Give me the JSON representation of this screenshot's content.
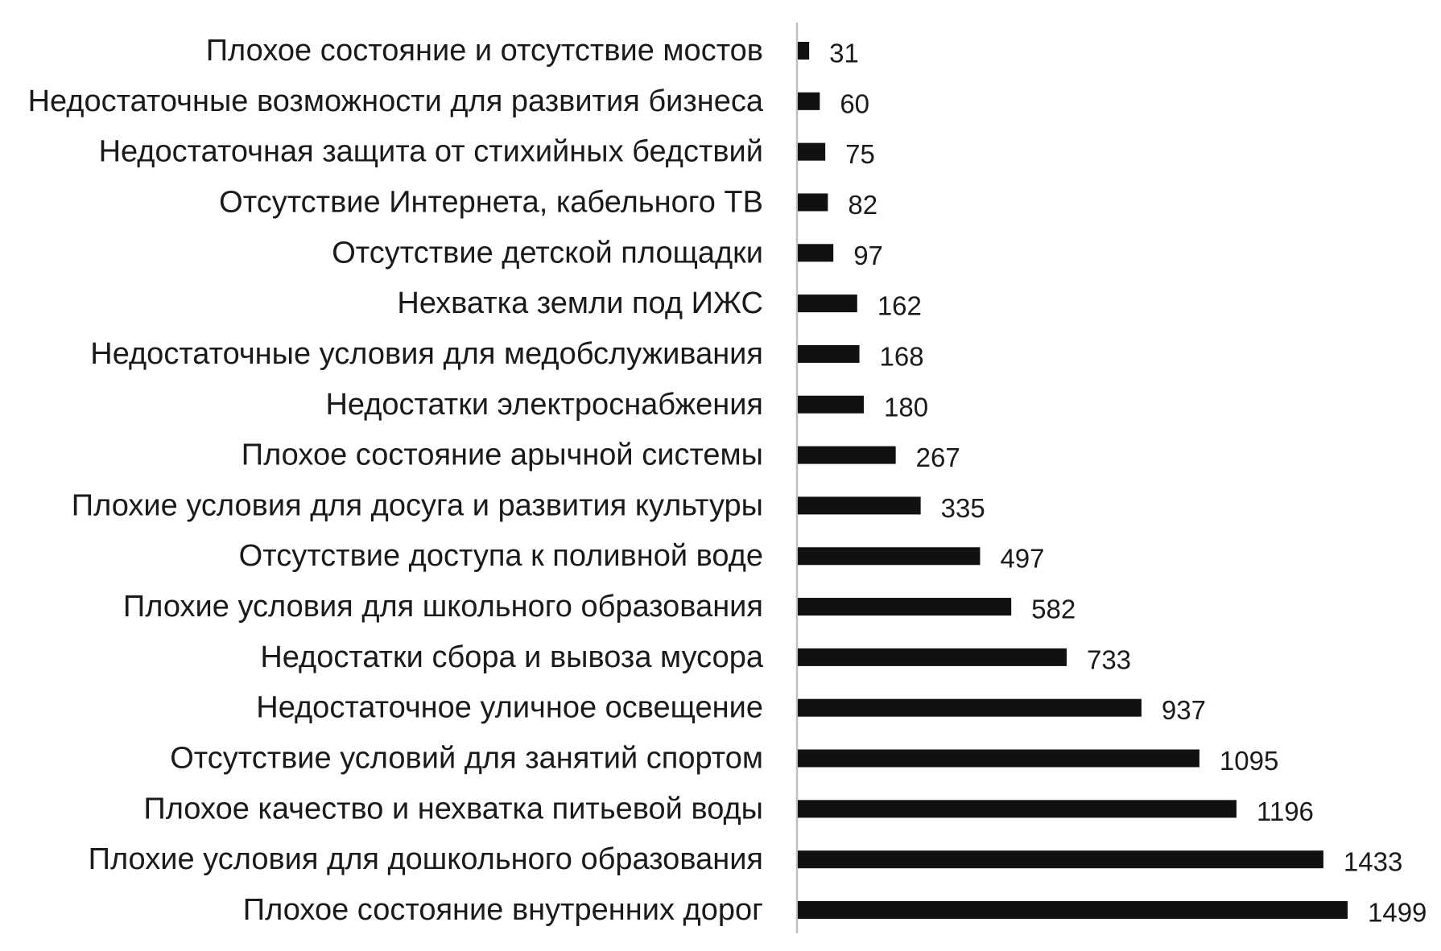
{
  "chart_data": {
    "type": "bar",
    "orientation": "horizontal",
    "title": "",
    "xlabel": "",
    "ylabel": "",
    "xlim": [
      0,
      1499
    ],
    "grid": false,
    "legend": "none",
    "bar_color": "#111111",
    "categories": [
      "Плохое состояние и отсутствие мостов",
      "Недостаточные возможности для развития бизнеса",
      "Недостаточная защита от стихийных бедствий",
      "Отсутствие Интернета, кабельного ТВ",
      "Отсутствие детской площадки",
      "Нехватка земли под ИЖС",
      "Недостаточные условия для медобслуживания",
      "Недостатки электроснабжения",
      "Плохое состояние арычной системы",
      "Плохие условия для досуга и развития культуры",
      "Отсутствие доступа к поливной воде",
      "Плохие условия для школьного образования",
      "Недостатки сбора и вывоза мусора",
      "Недостаточное уличное освещение",
      "Отсутствие условий для занятий спортом",
      "Плохое качество и нехватка питьевой воды",
      "Плохие условия для дошкольного образования",
      "Плохое состояние внутренних дорог"
    ],
    "values": [
      31,
      60,
      75,
      82,
      97,
      162,
      168,
      180,
      267,
      335,
      497,
      582,
      733,
      937,
      1095,
      1196,
      1433,
      1499
    ]
  }
}
